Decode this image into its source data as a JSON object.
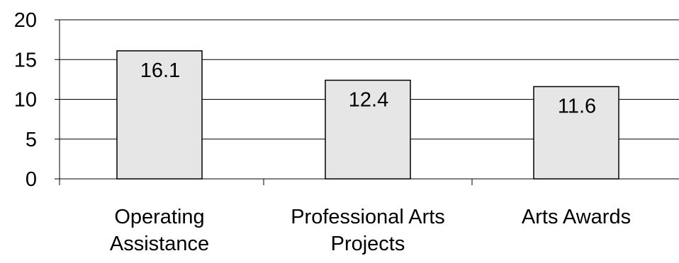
{
  "chart_data": {
    "type": "bar",
    "title": "",
    "xlabel": "",
    "ylabel": "",
    "categories": [
      [
        "Operating",
        "Assistance"
      ],
      [
        "Professional Arts",
        "Projects"
      ],
      [
        "Arts Awards"
      ]
    ],
    "values": [
      16.1,
      12.4,
      11.6
    ],
    "value_labels": [
      "16.1",
      "12.4",
      "11.6"
    ],
    "ylim": [
      0,
      20
    ],
    "yticks": [
      0,
      5,
      10,
      15,
      20
    ],
    "ytick_labels": [
      "0",
      "5",
      "10",
      "15",
      "20"
    ],
    "grid": true,
    "legend": false,
    "colors": {
      "bar_fill": "#e6e6e6",
      "bar_stroke": "#000000",
      "grid": "#000000",
      "axis": "#000000",
      "text": "#000000"
    }
  }
}
